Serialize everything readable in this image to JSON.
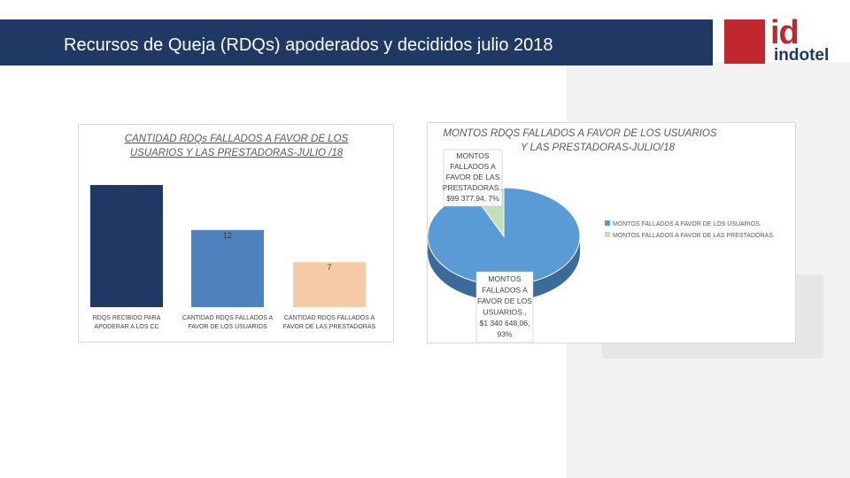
{
  "slide": {
    "title": "Recursos de Queja (RDQs) apoderados y decididos  julio 2018"
  },
  "logo": {
    "main": "id",
    "sub": "indotel"
  },
  "colors": {
    "title_bar": "#1f3864",
    "brand_red": "#c0282d",
    "bar_1": "#1f3864",
    "bar_2": "#4f81bd",
    "bar_3": "#f8cba8",
    "pie_users": "#5b9bd5",
    "pie_providers": "#c5e0b4"
  },
  "chart_data": [
    {
      "type": "bar",
      "title": "CANTIDAD RDQs FALLADOS A FAVOR DE LOS USUARIOS Y LAS PRESTADORAS-JULIO /18",
      "title_lines": [
        "CANTIDAD RDQs FALLADOS A FAVOR DE LOS",
        "USUARIOS Y LAS PRESTADORAS-JULIO /18"
      ],
      "categories": [
        "RDQS RECIBIDO PARA APODERAR A LOS CC",
        "CANTIDAD RDQS FALLADOS A FAVOR DE LOS USUARIOS",
        "CANTIDAD RDQS FALLADOS A FAVOR DE LAS PRESTADORAS"
      ],
      "category_lines": [
        [
          "RDQS RECIBIDO PARA",
          "APODERAR A LOS CC"
        ],
        [
          "CANTIDAD RDQS FALLADOS A",
          "FAVOR DE LOS USUARIOS"
        ],
        [
          "CANTIDAD RDQS FALLADOS A",
          "FAVOR DE LAS PRESTADORAS"
        ]
      ],
      "values": [
        19,
        12,
        7
      ],
      "data_labels": [
        "19",
        "12",
        "7"
      ],
      "ylim": [
        0,
        19
      ],
      "grid": false,
      "legend": "none"
    },
    {
      "type": "pie",
      "title": "MONTOS RDQS FALLADOS A FAVOR DE LOS  USUARIOS Y LAS PRESTADORAS-JULIO/18",
      "title_lines": [
        "MONTOS RDQS FALLADOS A FAVOR DE LOS  USUARIOS",
        "Y LAS PRESTADORAS-JULIO/18"
      ],
      "slices": [
        {
          "label": "MONTOS  FALLADOS A FAVOR DE LOS USUARIOS.",
          "value": 1340648.06,
          "percent": 93,
          "data_label_lines": [
            "MONTOS",
            "FALLADOS A",
            "FAVOR DE LOS",
            "USUARIOS.,",
            "$1 340 648,06,",
            "93%"
          ]
        },
        {
          "label": "MONTOS  FALLADOS  A FAVOR DE LAS PRESTADORAS.",
          "value": 99377.94,
          "percent": 7,
          "data_label_lines": [
            "MONTOS",
            "FALLADOS  A",
            "FAVOR DE LAS",
            "PRESTADORAS.,",
            "$99 377,94, 7%"
          ]
        }
      ],
      "legend": "right"
    }
  ]
}
